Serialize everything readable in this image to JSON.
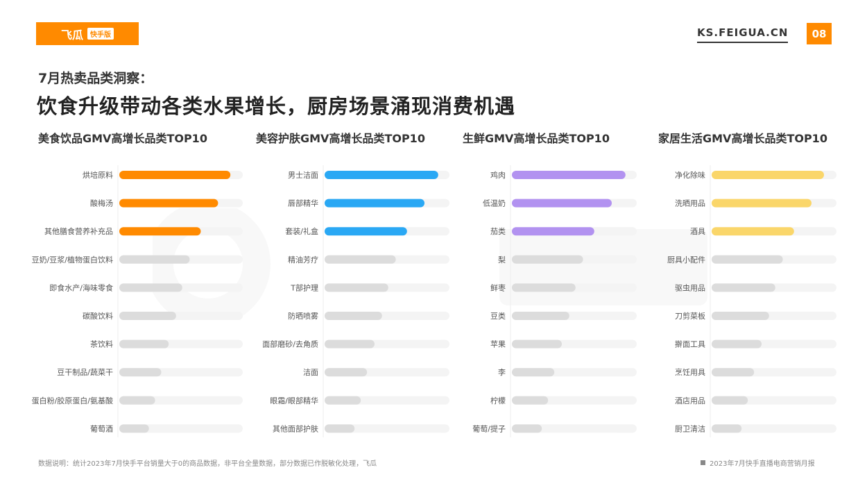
{
  "header": {
    "logo_text": "飞瓜",
    "logo_badge": "快手版",
    "site": "KS.FEIGUA.CN",
    "page_number": "08",
    "accent": "#ff8a00"
  },
  "subtitle": "7月热卖品类洞察：",
  "title": "饮食升级带动各类水果增长，厨房场景涌现消费机遇",
  "footnote": "数据说明：统计2023年7月快手平台销量大于0的商品数据，非平台全量数据，部分数据已作脱敏化处理，飞瓜",
  "report_label": "2023年7月快手直播电商营销月报",
  "chart_data": [
    {
      "type": "bar",
      "title": "美食饮品GMV高增长品类TOP10",
      "categories": [
        "烘培原料",
        "酸梅汤",
        "其他膳食营养补充品",
        "豆奶/豆浆/植物蛋白饮料",
        "即食水产/海味零食",
        "碳酸饮料",
        "茶饮料",
        "豆干制品/蔬菜干",
        "蛋白粉/胶原蛋白/氨基酸",
        "葡萄酒"
      ],
      "values": [
        90,
        80,
        66,
        57,
        51,
        46,
        40,
        34,
        29,
        24
      ],
      "highlight_count": 3,
      "highlight_color": "#ff8a00",
      "base_color": "#dcdcdc",
      "track_color": "#f4f4f4",
      "xlim": [
        0,
        100
      ]
    },
    {
      "type": "bar",
      "title": "美容护肤GMV高增长品类TOP10",
      "categories": [
        "男士洁面",
        "唇部精华",
        "套装/礼盒",
        "精油芳疗",
        "T部护理",
        "防晒喷雾",
        "面部磨砂/去角质",
        "洁面",
        "眼霜/眼部精华",
        "其他面部护肤"
      ],
      "values": [
        91,
        80,
        66,
        57,
        51,
        46,
        40,
        34,
        29,
        24
      ],
      "highlight_count": 3,
      "highlight_color": "#2aa8f4",
      "base_color": "#dcdcdc",
      "track_color": "#f4f4f4",
      "xlim": [
        0,
        100
      ]
    },
    {
      "type": "bar",
      "title": "生鲜GMV高增长品类TOP10",
      "categories": [
        "鸡肉",
        "低温奶",
        "茄类",
        "梨",
        "鲜枣",
        "豆类",
        "苹果",
        "李",
        "柠檬",
        "葡萄/提子"
      ],
      "values": [
        91,
        80,
        66,
        57,
        51,
        46,
        40,
        34,
        29,
        24
      ],
      "highlight_count": 3,
      "highlight_color": "#b292f0",
      "base_color": "#dcdcdc",
      "track_color": "#f4f4f4",
      "xlim": [
        0,
        100
      ]
    },
    {
      "type": "bar",
      "title": "家居生活GMV高增长品类TOP10",
      "categories": [
        "净化除味",
        "洗晒用品",
        "酒具",
        "厨具小配件",
        "驱虫用品",
        "刀剪菜板",
        "擀面工具",
        "烹饪用具",
        "酒店用品",
        "厨卫清洁"
      ],
      "values": [
        90,
        80,
        66,
        57,
        51,
        46,
        40,
        34,
        29,
        24
      ],
      "highlight_count": 3,
      "highlight_color": "#fad66a",
      "base_color": "#dcdcdc",
      "track_color": "#f4f4f4",
      "xlim": [
        0,
        100
      ]
    }
  ]
}
